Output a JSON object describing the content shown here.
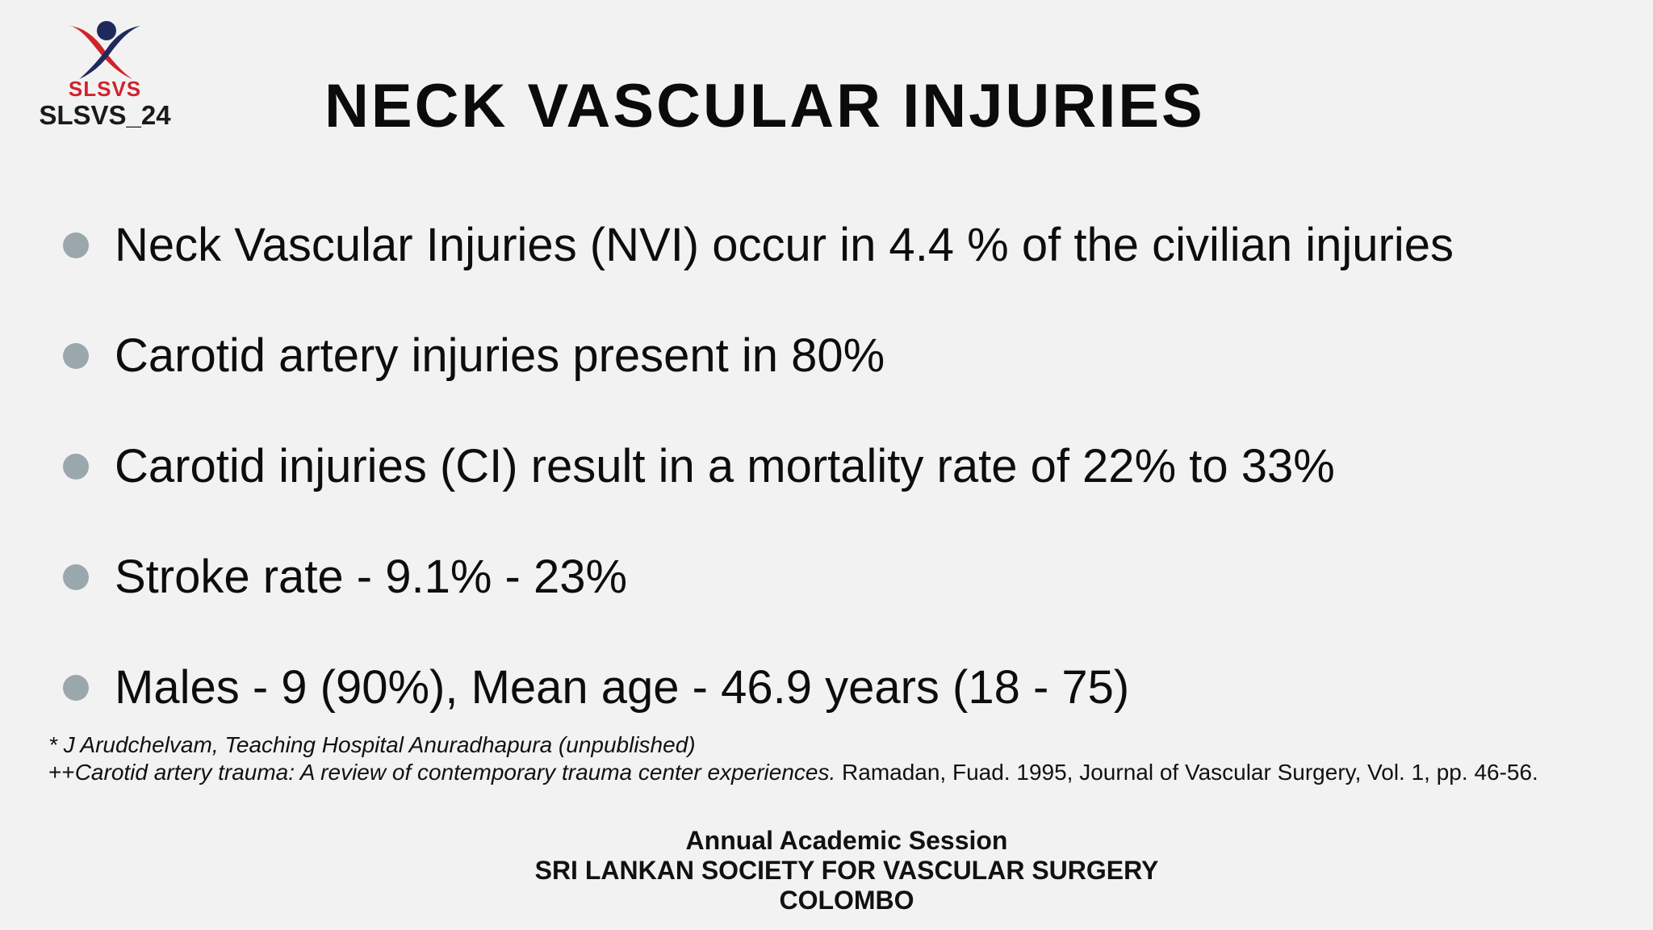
{
  "logo": {
    "org": "SLSVS",
    "event": "SLSVS_24"
  },
  "title": "NECK VASCULAR INJURIES",
  "bullets": [
    "Neck Vascular Injuries (NVI) occur in 4.4 % of the civilian injuries",
    "Carotid artery injuries present  in 80%",
    "Carotid injuries (CI) result in a mortality rate of  22% to 33%",
    "Stroke rate - 9.1%  - 23%",
    "Males - 9 (90%),  Mean age - 46.9 years (18 - 75)"
  ],
  "references": {
    "ref1": "* J Arudchelvam, Teaching Hospital Anuradhapura (unpublished)",
    "ref2_prefix": "++",
    "ref2_title": "Carotid artery trauma: A review of contemporary trauma center experiences.",
    "ref2_rest": " Ramadan, Fuad. 1995, Journal of Vascular Surgery, Vol. 1, pp. 46-56."
  },
  "footer": {
    "line1": "Annual Academic Session",
    "line2": "SRI LANKAN SOCIETY FOR VASCULAR SURGERY",
    "line3": "COLOMBO"
  },
  "colors": {
    "background": "#f2f2f2",
    "bullet_dot": "#9aa7ad",
    "logo_red": "#d0232a",
    "logo_navy": "#1f2a5c"
  },
  "icons": {
    "logo": "slsvs-logo-icon"
  }
}
